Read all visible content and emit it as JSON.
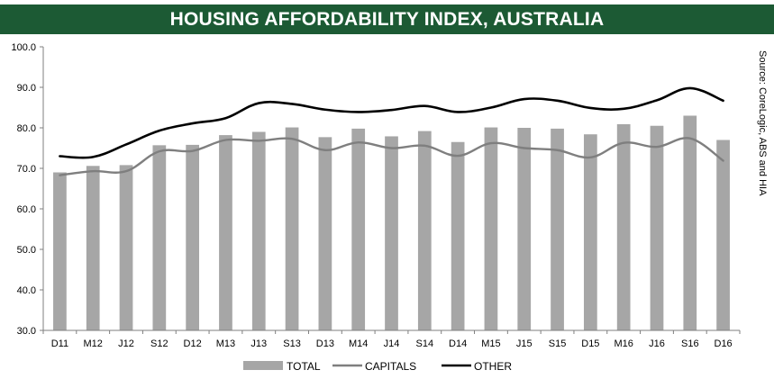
{
  "title": "HOUSING AFFORDABILITY INDEX, AUSTRALIA",
  "source": "Source: CoreLogic, ABS and HIA",
  "chart_data": {
    "type": "bar",
    "title": "HOUSING AFFORDABILITY INDEX, AUSTRALIA",
    "xlabel": "",
    "ylabel": "",
    "ylim": [
      30,
      100
    ],
    "yticks": [
      30,
      40,
      50,
      60,
      70,
      80,
      90,
      100
    ],
    "ytick_labels": [
      "30.0",
      "40.0",
      "50.0",
      "60.0",
      "70.0",
      "80.0",
      "90.0",
      "100.0"
    ],
    "grid": false,
    "legend_position": "bottom",
    "categories": [
      "D11",
      "M12",
      "J12",
      "S12",
      "D12",
      "M13",
      "J13",
      "S13",
      "D13",
      "M14",
      "J14",
      "S14",
      "D14",
      "M15",
      "J15",
      "S15",
      "D15",
      "M16",
      "J16",
      "S16",
      "D16"
    ],
    "series": [
      {
        "name": "TOTAL",
        "type": "bar",
        "color": "#a6a6a6",
        "values": [
          69.0,
          70.6,
          70.8,
          75.7,
          75.8,
          78.2,
          79.0,
          80.1,
          77.7,
          79.8,
          77.9,
          79.2,
          76.5,
          80.1,
          80.0,
          79.8,
          78.4,
          80.9,
          80.5,
          83.0,
          77.0
        ]
      },
      {
        "name": "CAPITALS",
        "type": "line",
        "color": "#7f7f7f",
        "values": [
          68.3,
          69.3,
          69.3,
          74.2,
          74.3,
          77.0,
          76.8,
          77.3,
          74.5,
          76.4,
          75.0,
          75.6,
          73.1,
          76.2,
          75.0,
          74.5,
          72.7,
          76.3,
          75.3,
          77.4,
          71.9
        ]
      },
      {
        "name": "OTHER",
        "type": "line",
        "color": "#000000",
        "values": [
          73.0,
          72.8,
          75.9,
          79.3,
          81.1,
          82.4,
          86.1,
          85.9,
          84.5,
          83.9,
          84.4,
          85.4,
          83.9,
          85.0,
          87.1,
          86.7,
          84.9,
          84.7,
          86.8,
          89.8,
          86.7
        ]
      }
    ]
  }
}
